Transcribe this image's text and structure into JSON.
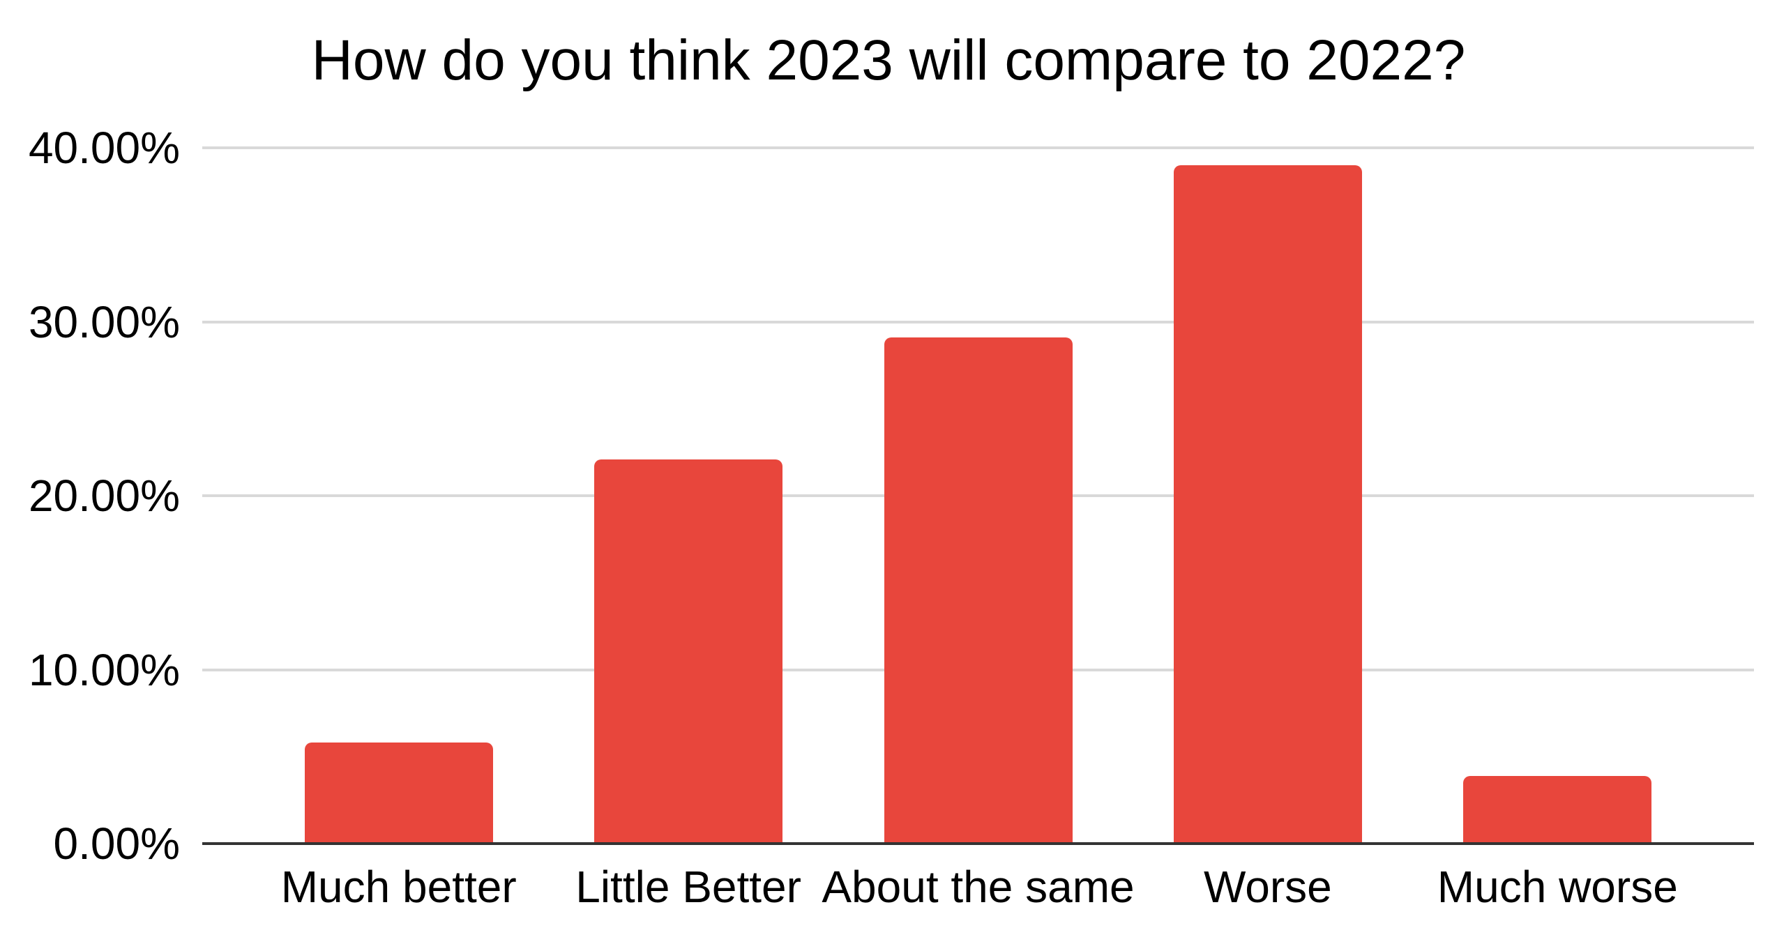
{
  "chart_data": {
    "type": "bar",
    "title": "How do you think 2023 will compare to 2022?",
    "categories": [
      "Much better",
      "Little Better",
      "About the same",
      "Worse",
      "Much worse"
    ],
    "values": [
      5.8,
      22.1,
      29.1,
      39.0,
      3.9
    ],
    "value_unit": "%",
    "series_name": "",
    "xlabel": "",
    "ylabel": "",
    "ylim": [
      0,
      40
    ],
    "y_tick_values": [
      0,
      10,
      20,
      30,
      40
    ],
    "y_tick_labels": [
      "0.00%",
      "10.00%",
      "20.00%",
      "30.00%",
      "40.00%"
    ],
    "legend": "none",
    "grid": "horizontal",
    "colors": {
      "bar": "#e8463c",
      "gridline": "#d9d9d9",
      "axis_line": "#333333",
      "text": "#000000",
      "background": "#ffffff"
    }
  }
}
